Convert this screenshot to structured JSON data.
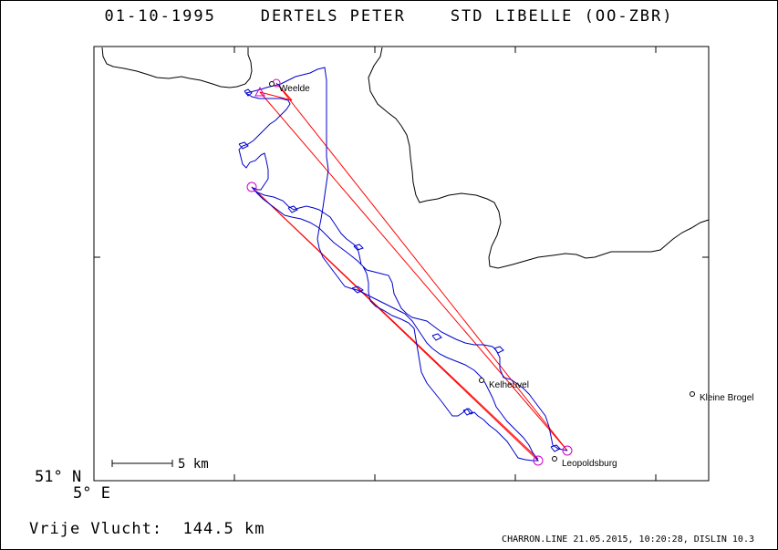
{
  "title": {
    "date": "01-10-1995",
    "pilot": "DERTELS PETER",
    "glider": "STD LIBELLE (OO-ZBR)"
  },
  "axes": {
    "lat_label": "51° N",
    "lon_label": "5° E"
  },
  "scale_bar": {
    "label": "5 km"
  },
  "places": [
    {
      "name": "Weelde"
    },
    {
      "name": "Kelheuvel"
    },
    {
      "name": "Leopoldsburg"
    },
    {
      "name": "Kleine Brogel"
    }
  ],
  "summary": {
    "flight_type": "Vrije Vlucht:",
    "distance": "144.5 km"
  },
  "footer": "CHARRON.LINE 21.05.2015, 10:20:28, DISLIN 10.3",
  "colors": {
    "track": "#0000cc",
    "task_lines": "#ff0000",
    "turnpoints": "#cc00cc",
    "border": "#000000"
  }
}
